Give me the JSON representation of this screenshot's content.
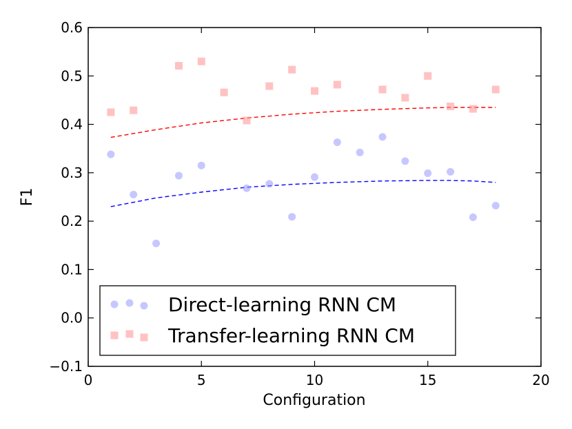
{
  "chart_data": {
    "type": "scatter",
    "xlabel": "Configuration",
    "ylabel": "F1",
    "xlim": [
      0,
      20
    ],
    "ylim": [
      -0.1,
      0.6
    ],
    "xticks": [
      0,
      5,
      10,
      15,
      20
    ],
    "yticks": [
      -0.1,
      0.0,
      0.1,
      0.2,
      0.3,
      0.4,
      0.5,
      0.6
    ],
    "ytick_labels": [
      "−0.1",
      "0.0",
      "0.1",
      "0.2",
      "0.3",
      "0.4",
      "0.5",
      "0.6"
    ],
    "grid": false,
    "legend_position": "lower-left",
    "series": [
      {
        "name": "Direct-learning RNN CM",
        "marker": "circle",
        "color": "#9999ff",
        "x": [
          1,
          2,
          3,
          4,
          5,
          7,
          8,
          9,
          10,
          11,
          12,
          13,
          14,
          15,
          16,
          17,
          18
        ],
        "y": [
          0.338,
          0.255,
          0.154,
          0.294,
          0.315,
          0.268,
          0.277,
          0.209,
          0.291,
          0.363,
          0.342,
          0.374,
          0.324,
          0.299,
          0.302,
          0.208,
          0.232
        ]
      },
      {
        "name": "Transfer-learning RNN CM",
        "marker": "square",
        "color": "#ff9999",
        "x": [
          1,
          2,
          4,
          5,
          6,
          7,
          8,
          9,
          10,
          11,
          13,
          14,
          15,
          16,
          17,
          18
        ],
        "y": [
          0.425,
          0.429,
          0.521,
          0.53,
          0.466,
          0.408,
          0.479,
          0.513,
          0.469,
          0.482,
          0.472,
          0.455,
          0.5,
          0.437,
          0.432,
          0.472
        ]
      }
    ],
    "trend_lines": [
      {
        "color": "#0000ff",
        "x": [
          1,
          3,
          5,
          7,
          9,
          11,
          13,
          15,
          16,
          17,
          18
        ],
        "y": [
          0.23,
          0.248,
          0.26,
          0.27,
          0.276,
          0.28,
          0.283,
          0.284,
          0.284,
          0.283,
          0.28
        ]
      },
      {
        "color": "#ff0000",
        "x": [
          1,
          3,
          5,
          7,
          9,
          11,
          13,
          15,
          16,
          17,
          18
        ],
        "y": [
          0.373,
          0.389,
          0.403,
          0.413,
          0.421,
          0.427,
          0.431,
          0.434,
          0.435,
          0.435,
          0.435
        ]
      }
    ]
  }
}
